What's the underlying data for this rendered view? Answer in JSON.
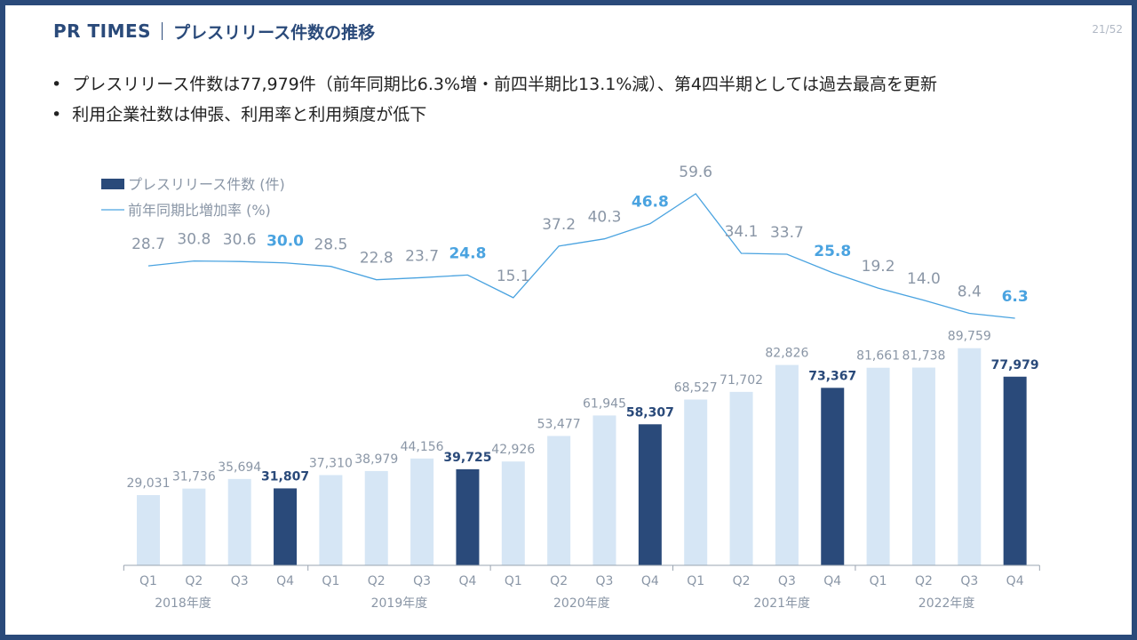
{
  "header": {
    "brand": "PR TIMES",
    "title": "プレスリリース件数の推移"
  },
  "page_number": "21/52",
  "bullets": [
    "プレスリリース件数は77,979件（前年同期比6.3%増・前四半期比13.1%減）、第4四半期としては過去最高を更新",
    "利用企業社数は伸張、利用率と利用頻度が低下"
  ],
  "colors": {
    "bar_light": "#d6e6f5",
    "bar_dark": "#2a4a7a",
    "line": "#4aa3e0",
    "axis": "#9aa4b0"
  },
  "chart_data": {
    "type": "bar+line",
    "legend": [
      {
        "label": "プレスリリース件数 (件)",
        "kind": "bar"
      },
      {
        "label": "前年同期比増加率 (%)",
        "kind": "line"
      }
    ],
    "legend_position": "top-left",
    "quarters": [
      "Q1",
      "Q2",
      "Q3",
      "Q4",
      "Q1",
      "Q2",
      "Q3",
      "Q4",
      "Q1",
      "Q2",
      "Q3",
      "Q4",
      "Q1",
      "Q2",
      "Q3",
      "Q4",
      "Q1",
      "Q2",
      "Q3",
      "Q4"
    ],
    "years": [
      "2018年度",
      "2019年度",
      "2020年度",
      "2021年度",
      "2022年度"
    ],
    "bar_values": [
      29031,
      31736,
      35694,
      31807,
      37310,
      38979,
      44156,
      39725,
      42926,
      53477,
      61945,
      58307,
      68527,
      71702,
      82826,
      73367,
      81661,
      81738,
      89759,
      77979
    ],
    "bar_labels": [
      "29,031",
      "31,736",
      "35,694",
      "31,807",
      "37,310",
      "38,979",
      "44,156",
      "39,725",
      "42,926",
      "53,477",
      "61,945",
      "58,307",
      "68,527",
      "71,702",
      "82,826",
      "73,367",
      "81,661",
      "81,738",
      "89,759",
      "77,979"
    ],
    "line_values": [
      28.7,
      30.8,
      30.6,
      30.0,
      28.5,
      22.8,
      23.7,
      24.8,
      15.1,
      37.2,
      40.3,
      46.8,
      59.6,
      34.1,
      33.7,
      25.8,
      19.2,
      14.0,
      8.4,
      6.3
    ],
    "line_labels": [
      "28.7",
      "30.8",
      "30.6",
      "30.0",
      "28.5",
      "22.8",
      "23.7",
      "24.8",
      "15.1",
      "37.2",
      "40.3",
      "46.8",
      "59.6",
      "34.1",
      "33.7",
      "25.8",
      "19.2",
      "14.0",
      "8.4",
      "6.3"
    ],
    "bar_ylim": [
      0,
      97000
    ],
    "line_ylim": [
      5,
      60
    ],
    "grid": false
  }
}
